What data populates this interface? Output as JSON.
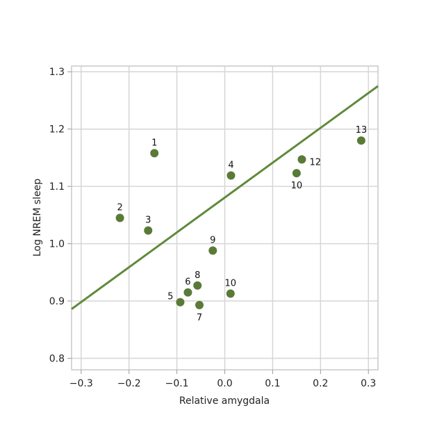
{
  "chart_data": {
    "type": "scatter",
    "xlabel": "Relative amygdala",
    "ylabel": "Log NREM sleep",
    "xlim": [
      -0.32,
      0.32
    ],
    "ylim": [
      0.78,
      1.31
    ],
    "xticks": [
      -0.3,
      -0.2,
      -0.1,
      0.0,
      0.1,
      0.2,
      0.3
    ],
    "xtick_labels": [
      "−0.3",
      "−0.2",
      "−0.1",
      "0.0",
      "0.1",
      "0.2",
      "0.3"
    ],
    "yticks": [
      0.8,
      0.9,
      1.0,
      1.1,
      1.2,
      1.3
    ],
    "ytick_labels": [
      "0.8",
      "0.9",
      "1.0",
      "1.1",
      "1.2",
      "1.3"
    ],
    "grid": true,
    "points": [
      {
        "label": "1",
        "x": -0.147,
        "y": 1.158,
        "label_pos": "above"
      },
      {
        "label": "2",
        "x": -0.219,
        "y": 1.045,
        "label_pos": "above"
      },
      {
        "label": "3",
        "x": -0.16,
        "y": 1.023,
        "label_pos": "above"
      },
      {
        "label": "4",
        "x": 0.013,
        "y": 1.119,
        "label_pos": "above"
      },
      {
        "label": "5",
        "x": -0.093,
        "y": 0.898,
        "label_pos": "left"
      },
      {
        "label": "6",
        "x": -0.077,
        "y": 0.915,
        "label_pos": "above"
      },
      {
        "label": "7",
        "x": -0.053,
        "y": 0.893,
        "label_pos": "below"
      },
      {
        "label": "8",
        "x": -0.057,
        "y": 0.927,
        "label_pos": "above"
      },
      {
        "label": "9",
        "x": -0.025,
        "y": 0.988,
        "label_pos": "above"
      },
      {
        "label": "10",
        "x": 0.012,
        "y": 0.913,
        "label_pos": "above"
      },
      {
        "label": "10",
        "x": 0.15,
        "y": 1.123,
        "label_pos": "below"
      },
      {
        "label": "12",
        "x": 0.161,
        "y": 1.147,
        "label_pos": "right"
      },
      {
        "label": "13",
        "x": 0.285,
        "y": 1.18,
        "label_pos": "above"
      }
    ],
    "fit_line": {
      "x": [
        -0.32,
        0.32
      ],
      "y": [
        0.886,
        1.275
      ]
    },
    "colors": {
      "point": "#5a7a38",
      "line": "#5f8a3b",
      "grid": "#d6d6d6",
      "frame": "#c9c9c9"
    }
  }
}
